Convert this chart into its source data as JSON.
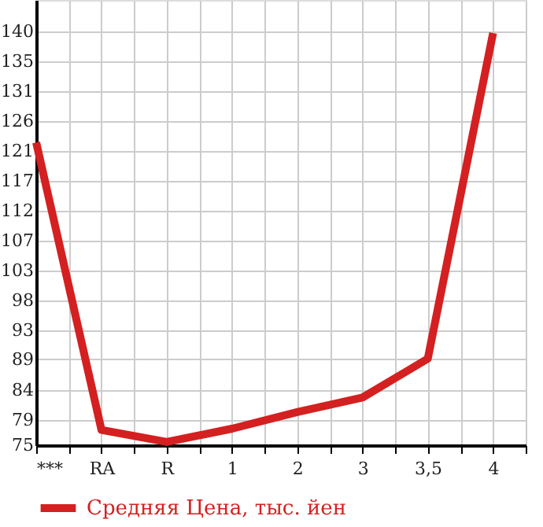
{
  "chart_data": {
    "type": "line",
    "categories": [
      "***",
      "RA",
      "R",
      "1",
      "2",
      "3",
      "3,5",
      "4"
    ],
    "series": [
      {
        "name": "Средняя Цена, тыс. йен",
        "color": "#d42020",
        "values": [
          122.6,
          77.4,
          75.5,
          77.6,
          80.2,
          82.5,
          88.6,
          139.8
        ]
      }
    ],
    "ylim": [
      75,
      145
    ],
    "yticks": [
      {
        "value": 75,
        "label": "75"
      },
      {
        "value": 79.0,
        "label": "79"
      },
      {
        "value": 83.7,
        "label": "84"
      },
      {
        "value": 88.5,
        "label": "89"
      },
      {
        "value": 93.1,
        "label": "93"
      },
      {
        "value": 97.8,
        "label": "98"
      },
      {
        "value": 102.5,
        "label": "103"
      },
      {
        "value": 107.2,
        "label": "107"
      },
      {
        "value": 111.8,
        "label": "112"
      },
      {
        "value": 116.5,
        "label": "117"
      },
      {
        "value": 121.2,
        "label": "121"
      },
      {
        "value": 125.9,
        "label": "126"
      },
      {
        "value": 130.6,
        "label": "131"
      },
      {
        "value": 135.3,
        "label": "135"
      },
      {
        "value": 140.0,
        "label": "140"
      }
    ],
    "grid": true,
    "legend": "bottom left",
    "marker": "none",
    "line_style": "solid"
  }
}
